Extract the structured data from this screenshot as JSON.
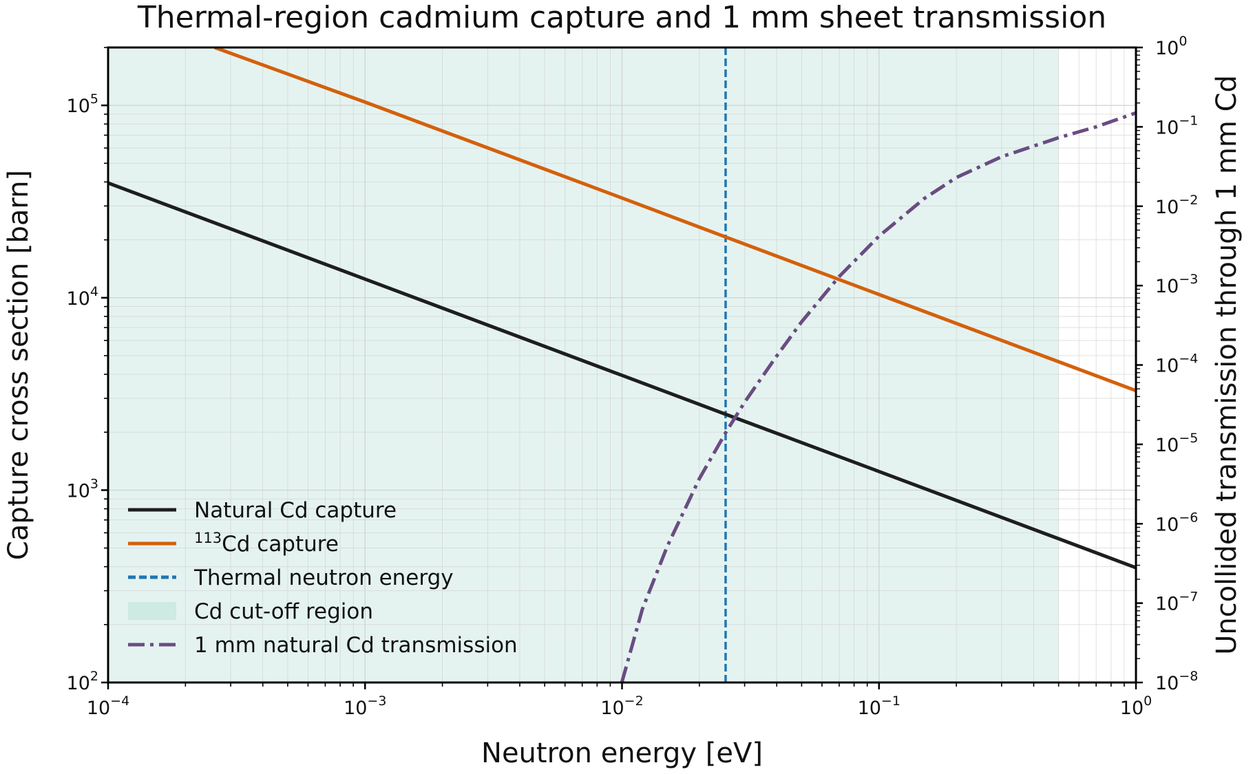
{
  "chart_data": {
    "type": "line",
    "title": "Thermal-region cadmium capture and 1 mm sheet transmission",
    "xlabel": "Neutron energy [eV]",
    "ylabel": "Capture cross section [barn]",
    "y2label": "Uncollided transmission through 1 mm Cd",
    "xscale": "log",
    "yscale": "log",
    "y2scale": "log",
    "xlim": [
      0.0001,
      1
    ],
    "ylim": [
      100,
      200000
    ],
    "y2lim": [
      1e-08,
      1
    ],
    "grid": true,
    "legend_position": "lower-left",
    "x_ticks": [
      {
        "value": 0.0001,
        "base": "10",
        "exp": "−4"
      },
      {
        "value": 0.001,
        "base": "10",
        "exp": "−3"
      },
      {
        "value": 0.01,
        "base": "10",
        "exp": "−2"
      },
      {
        "value": 0.1,
        "base": "10",
        "exp": "−1"
      },
      {
        "value": 1,
        "base": "10",
        "exp": "0"
      }
    ],
    "y_ticks": [
      {
        "value": 100,
        "base": "10",
        "exp": "2"
      },
      {
        "value": 1000,
        "base": "10",
        "exp": "3"
      },
      {
        "value": 10000,
        "base": "10",
        "exp": "4"
      },
      {
        "value": 100000,
        "base": "10",
        "exp": "5"
      }
    ],
    "y2_ticks": [
      {
        "value": 1e-08,
        "base": "10",
        "exp": "−8"
      },
      {
        "value": 1e-07,
        "base": "10",
        "exp": "−7"
      },
      {
        "value": 1e-06,
        "base": "10",
        "exp": "−6"
      },
      {
        "value": 1e-05,
        "base": "10",
        "exp": "−5"
      },
      {
        "value": 0.0001,
        "base": "10",
        "exp": "−4"
      },
      {
        "value": 0.001,
        "base": "10",
        "exp": "−3"
      },
      {
        "value": 0.01,
        "base": "10",
        "exp": "−2"
      },
      {
        "value": 0.1,
        "base": "10",
        "exp": "−1"
      },
      {
        "value": 1,
        "base": "10",
        "exp": "0"
      }
    ],
    "shaded_region": {
      "name": "Cd cut-off region",
      "x_start": 0.0001,
      "x_end": 0.5,
      "color": "#cdeae3"
    },
    "vertical_line": {
      "name": "Thermal neutron energy",
      "x": 0.0253,
      "color": "#1f77b4"
    },
    "series": [
      {
        "name": "Natural Cd capture",
        "axis": "left",
        "color": "#1e1e1e",
        "style": "solid",
        "x": [
          0.0001,
          0.001,
          0.01,
          0.0253,
          0.1,
          0.5,
          1
        ],
        "y": [
          39500,
          12500,
          3950,
          2480,
          1250,
          559,
          395
        ]
      },
      {
        "name": "113Cd capture",
        "name_sup": "113",
        "name_rest": "Cd capture",
        "axis": "left",
        "color": "#d4600b",
        "style": "solid",
        "x": [
          0.00026,
          0.001,
          0.01,
          0.0253,
          0.1,
          0.5,
          1
        ],
        "y": [
          200000,
          104000,
          33000,
          20700,
          10400,
          4650,
          3290
        ]
      },
      {
        "name": "1 mm natural Cd transmission",
        "axis": "right",
        "color": "#6a4c82",
        "style": "dashdot",
        "x": [
          0.00998,
          0.012,
          0.015,
          0.02,
          0.0253,
          0.03,
          0.04,
          0.05,
          0.07,
          0.1,
          0.15,
          0.2,
          0.3,
          0.5,
          0.7,
          1
        ],
        "y": [
          1e-08,
          8.4e-08,
          5.2e-07,
          3.7e-06,
          1.4e-05,
          3.4e-05,
          0.00013,
          0.00035,
          0.0013,
          0.0042,
          0.0125,
          0.023,
          0.042,
          0.073,
          0.1,
          0.15
        ]
      }
    ]
  }
}
